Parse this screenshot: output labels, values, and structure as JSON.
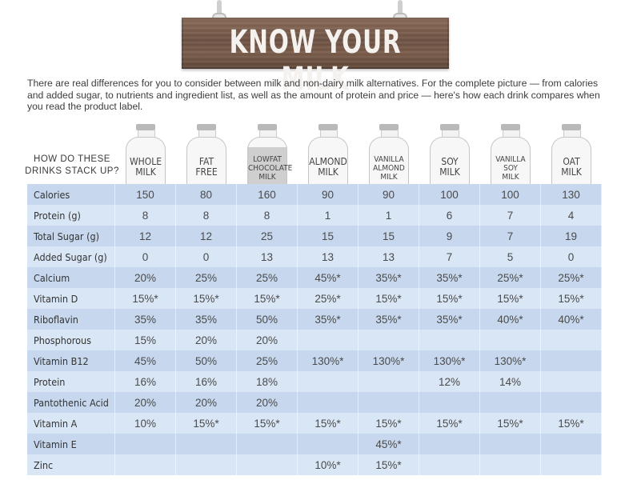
{
  "sign": {
    "title": "KNOW YOUR MILK"
  },
  "intro": "There are real differences for you to consider between milk and non-dairy milk alternatives. For the complete picture — from calories and added sugar, to nutrients and ingredient list, as well as the amount of protein and price — here's how each drink compares when you read the product label.",
  "header_label": [
    "HOW DO THESE",
    "DRINKS STACK UP?"
  ],
  "bottles": [
    {
      "lines": [
        "WHOLE",
        "MILK"
      ],
      "style": "plain"
    },
    {
      "lines": [
        "FAT",
        "FREE"
      ],
      "style": "plain"
    },
    {
      "lines": [
        "LOWFAT",
        "CHOCOLATE",
        "MILK"
      ],
      "style": "chocolate"
    },
    {
      "lines": [
        "ALMOND",
        "MILK"
      ],
      "style": "plain"
    },
    {
      "lines": [
        "VANILLA",
        "ALMOND",
        "MILK"
      ],
      "style": "plain"
    },
    {
      "lines": [
        "SOY",
        "MILK"
      ],
      "style": "plain"
    },
    {
      "lines": [
        "VANILLA",
        "SOY",
        "MILK"
      ],
      "style": "plain"
    },
    {
      "lines": [
        "OAT",
        "MILK"
      ],
      "style": "plain"
    }
  ],
  "rows": [
    {
      "name": "Calories",
      "values": [
        "150",
        "80",
        "160",
        "90",
        "90",
        "100",
        "100",
        "130"
      ]
    },
    {
      "name": "Protein (g)",
      "values": [
        "8",
        "8",
        "8",
        "1",
        "1",
        "6",
        "7",
        "4"
      ]
    },
    {
      "name": "Total Sugar (g)",
      "values": [
        "12",
        "12",
        "25",
        "15",
        "15",
        "9",
        "7",
        "19"
      ]
    },
    {
      "name": "Added Sugar (g)",
      "values": [
        "0",
        "0",
        "13",
        "13",
        "13",
        "7",
        "5",
        "0"
      ]
    },
    {
      "name": "Calcium",
      "values": [
        "20%",
        "25%",
        "25%",
        "45%*",
        "35%*",
        "35%*",
        "25%*",
        "25%*"
      ]
    },
    {
      "name": "Vitamin D",
      "values": [
        "15%*",
        "15%*",
        "15%*",
        "25%*",
        "15%*",
        "15%*",
        "15%*",
        "15%*"
      ]
    },
    {
      "name": "Riboflavin",
      "values": [
        "35%",
        "35%",
        "50%",
        "35%*",
        "35%*",
        "35%*",
        "40%*",
        "40%*"
      ]
    },
    {
      "name": "Phosphorous",
      "values": [
        "15%",
        "20%",
        "20%",
        "",
        "",
        "",
        "",
        ""
      ]
    },
    {
      "name": "Vitamin B12",
      "values": [
        "45%",
        "50%",
        "25%",
        "130%*",
        "130%*",
        "130%*",
        "130%*",
        ""
      ]
    },
    {
      "name": "Protein",
      "values": [
        "16%",
        "16%",
        "18%",
        "",
        "",
        "12%",
        "14%",
        ""
      ]
    },
    {
      "name": "Pantothenic Acid",
      "values": [
        "20%",
        "20%",
        "20%",
        "",
        "",
        "",
        "",
        ""
      ]
    },
    {
      "name": "Vitamin A",
      "values": [
        "10%",
        "15%*",
        "15%*",
        "15%*",
        "15%*",
        "15%*",
        "15%*",
        "15%*"
      ]
    },
    {
      "name": "Vitamin E",
      "values": [
        "",
        "",
        "",
        "",
        "45%*",
        "",
        "",
        ""
      ]
    },
    {
      "name": "Zinc",
      "values": [
        "",
        "",
        "",
        "10%*",
        "15%*",
        "",
        "",
        ""
      ]
    }
  ],
  "colors": {
    "row_dark": "#c7d8ee",
    "row_light": "#d9e6f5",
    "sign_wood": "#6f5445"
  }
}
